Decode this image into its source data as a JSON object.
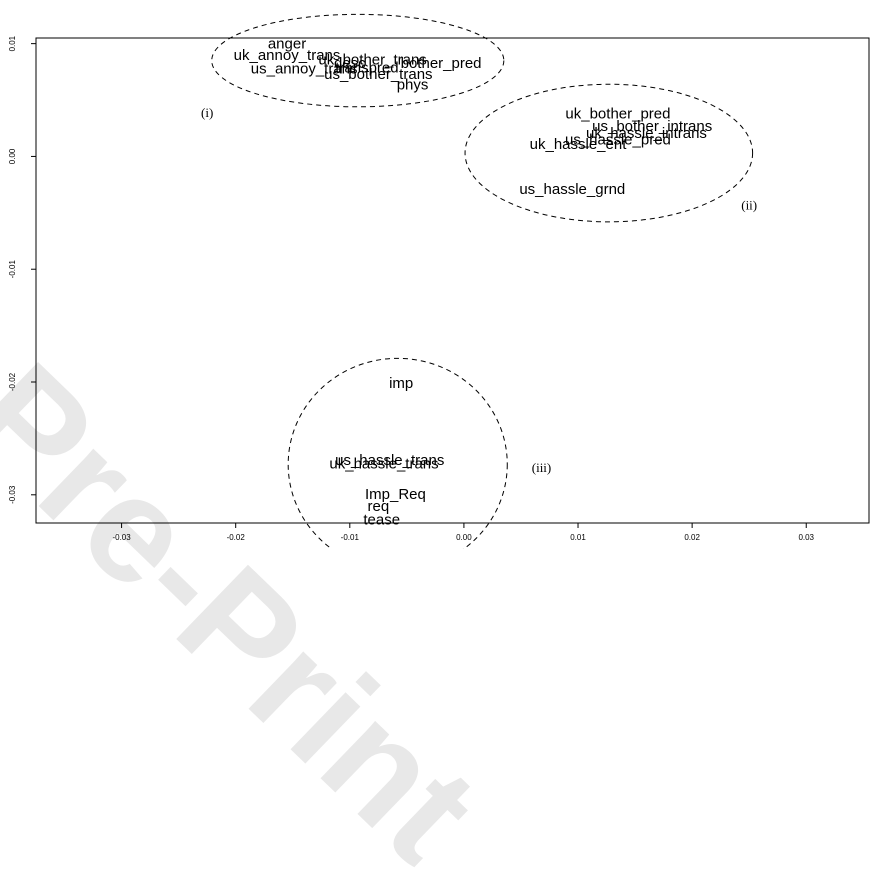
{
  "watermark": "Pre-Print",
  "chart_data": {
    "type": "scatter",
    "title": "",
    "xlabel": "",
    "ylabel": "",
    "xlim": [
      -0.0375,
      0.0355
    ],
    "ylim": [
      -0.0325,
      0.0105
    ],
    "x_ticks": [
      -0.03,
      -0.02,
      -0.01,
      0.0,
      0.01,
      0.02,
      0.03
    ],
    "x_tick_labels": [
      "-0.03",
      "-0.02",
      "-0.01",
      "0.00",
      "0.01",
      "0.02",
      "0.03"
    ],
    "y_ticks": [
      -0.03,
      -0.02,
      -0.01,
      0.0,
      0.01
    ],
    "y_tick_labels": [
      "-0.03",
      "-0.02",
      "-0.01",
      "0.00",
      "0.01"
    ],
    "grid": false,
    "points": [
      {
        "label": "anger",
        "x": -0.0155,
        "y": 0.0099
      },
      {
        "label": "uk_annoy_trans",
        "x": -0.0155,
        "y": 0.0089
      },
      {
        "label": "uk_bother_trans",
        "x": -0.008,
        "y": 0.0085
      },
      {
        "label": "desc",
        "x": -0.01,
        "y": 0.0082
      },
      {
        "label": "bother_pred",
        "x": -0.002,
        "y": 0.0082
      },
      {
        "label": "us_annoy_trans",
        "x": -0.014,
        "y": 0.0077
      },
      {
        "label": "transpred",
        "x": -0.0085,
        "y": 0.0078
      },
      {
        "label": "us_bother_trans",
        "x": -0.0075,
        "y": 0.0072
      },
      {
        "label": "phys",
        "x": -0.0045,
        "y": 0.0063
      },
      {
        "label": "uk_bother_pred",
        "x": 0.0135,
        "y": 0.0037
      },
      {
        "label": "us_bother_intrans",
        "x": 0.0165,
        "y": 0.0026
      },
      {
        "label": "uk_hassle_intrans",
        "x": 0.016,
        "y": 0.002
      },
      {
        "label": "us_hassle_pred",
        "x": 0.0135,
        "y": 0.0014
      },
      {
        "label": "uk_hassle_ent",
        "x": 0.01,
        "y": 0.001
      },
      {
        "label": "us_hassle_grnd",
        "x": 0.0095,
        "y": -0.003
      },
      {
        "label": "imp",
        "x": -0.0055,
        "y": -0.0202
      },
      {
        "label": "us_hassle_trans",
        "x": -0.0065,
        "y": -0.027
      },
      {
        "label": "uk_hassle_trans",
        "x": -0.007,
        "y": -0.0273
      },
      {
        "label": "Imp_Req",
        "x": -0.006,
        "y": -0.03
      },
      {
        "label": "req",
        "x": -0.0075,
        "y": -0.0311
      },
      {
        "label": "tease",
        "x": -0.0072,
        "y": -0.0323
      }
    ],
    "clusters": [
      {
        "label": "(i)",
        "cx": -0.0093,
        "cy": 0.0085,
        "rx": 0.0128,
        "ry": 0.0041,
        "label_x": -0.0225,
        "label_y": 0.0035
      },
      {
        "label": "(ii)",
        "cx": 0.0127,
        "cy": 0.0003,
        "rx": 0.0126,
        "ry": 0.0061,
        "label_x": 0.025,
        "label_y": -0.0047
      },
      {
        "label": "(iii)",
        "cx": -0.0058,
        "cy": -0.0273,
        "rx": 0.0096,
        "ry": 0.0094,
        "label_x": 0.0068,
        "label_y": -0.028
      }
    ]
  }
}
